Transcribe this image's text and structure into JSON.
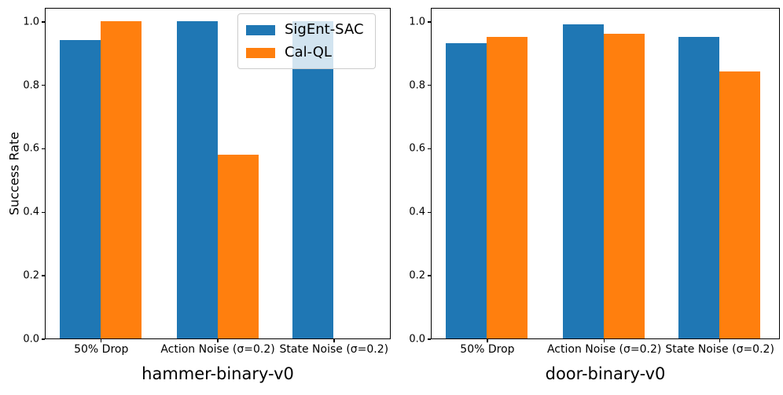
{
  "figure": {
    "ylabel": "Success Rate",
    "background_color": "#ffffff",
    "text_color": "#000000",
    "legend": {
      "items": [
        {
          "label": "SigEnt-SAC",
          "color": "#1f77b4"
        },
        {
          "label": "Cal-QL",
          "color": "#ff7f0e"
        }
      ],
      "position": "upper right of left panel",
      "background": "rgba(255,255,255,0.8)",
      "border_color": "#cccccc"
    }
  },
  "chart_data": [
    {
      "type": "bar",
      "title": "hammer-binary-v0",
      "ylabel": "Success Rate",
      "categories": [
        "50% Drop",
        "Action Noise (σ=0.2)",
        "State Noise (σ=0.2)"
      ],
      "series": [
        {
          "name": "SigEnt-SAC",
          "color": "#1f77b4",
          "values": [
            0.94,
            1.0,
            1.0
          ]
        },
        {
          "name": "Cal-QL",
          "color": "#ff7f0e",
          "values": [
            1.0,
            0.58,
            0.0
          ]
        }
      ],
      "yticks": [
        0.0,
        0.2,
        0.4,
        0.6,
        0.8,
        1.0
      ],
      "ylim": [
        0,
        1.044
      ],
      "grid": false,
      "legend_shown": true
    },
    {
      "type": "bar",
      "title": "door-binary-v0",
      "ylabel": "",
      "categories": [
        "50% Drop",
        "Action Noise (σ=0.2)",
        "State Noise (σ=0.2)"
      ],
      "series": [
        {
          "name": "SigEnt-SAC",
          "color": "#1f77b4",
          "values": [
            0.93,
            0.99,
            0.95
          ]
        },
        {
          "name": "Cal-QL",
          "color": "#ff7f0e",
          "values": [
            0.95,
            0.96,
            0.84
          ]
        }
      ],
      "yticks": [
        0.0,
        0.2,
        0.4,
        0.6,
        0.8,
        1.0
      ],
      "ylim": [
        0,
        1.044
      ],
      "grid": false,
      "legend_shown": false
    }
  ]
}
